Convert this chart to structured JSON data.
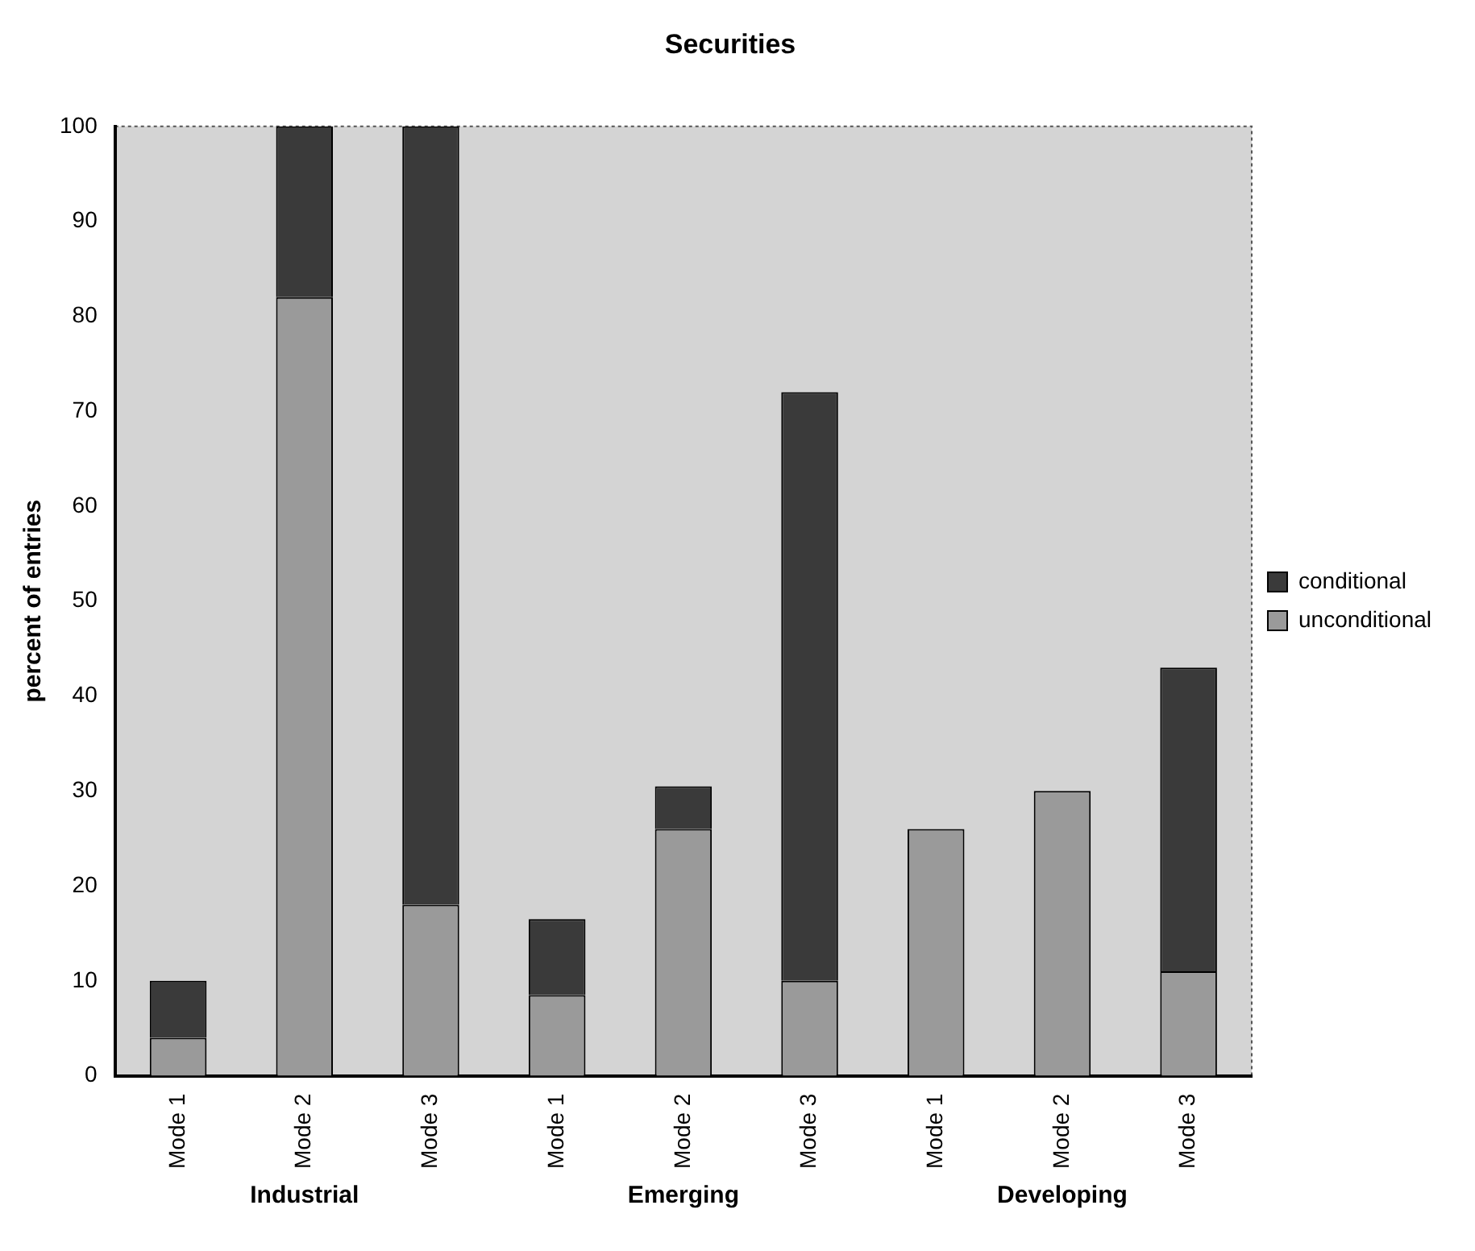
{
  "chart_data": {
    "type": "bar",
    "title": "Securities",
    "ylabel": "percent of entries",
    "categories": [
      "Mode 1",
      "Mode 2",
      "Mode 3",
      "Mode 1",
      "Mode 2",
      "Mode 3",
      "Mode 1",
      "Mode 2",
      "Mode 3"
    ],
    "stacked": true,
    "ylim": [
      0,
      100
    ],
    "yticks": [
      0,
      10,
      20,
      30,
      40,
      50,
      60,
      70,
      80,
      90,
      100
    ],
    "grid": false,
    "legend": "right",
    "annotations": [
      "Industrial",
      "Emerging",
      "Developing"
    ],
    "series": [
      {
        "name": "unconditional",
        "color": "#9a9a9a",
        "values": [
          4,
          82,
          18,
          8.5,
          26,
          10,
          26,
          30,
          11
        ]
      },
      {
        "name": "conditional",
        "color": "#3a3a3a",
        "values": [
          6,
          18,
          82,
          8,
          4.5,
          62,
          0,
          0,
          32
        ]
      }
    ]
  }
}
